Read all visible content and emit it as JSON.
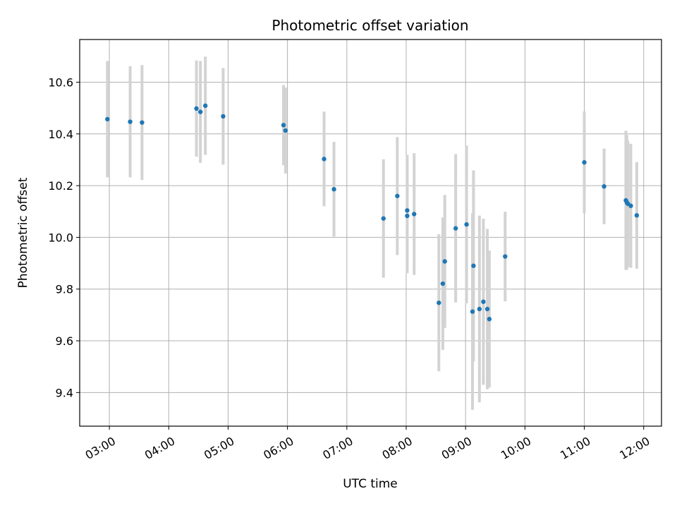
{
  "chart_data": {
    "type": "scatter",
    "title": "Photometric offset variation",
    "xlabel": "UTC time",
    "ylabel": "Photometric offset",
    "x_unit": "UTC time (HH:MM)",
    "xlim": [
      "02:30",
      "12:18"
    ],
    "ylim": [
      9.27,
      10.765
    ],
    "x_ticks": [
      "03:00",
      "04:00",
      "05:00",
      "06:00",
      "07:00",
      "08:00",
      "09:00",
      "10:00",
      "11:00",
      "12:00"
    ],
    "y_ticks": [
      9.4,
      9.6,
      9.8,
      10.0,
      10.2,
      10.4,
      10.6
    ],
    "y_tick_labels": [
      "9.4",
      "9.6",
      "9.8",
      "10.0",
      "10.2",
      "10.4",
      "10.6"
    ],
    "grid": true,
    "marker_color": "#1f77b4",
    "errorbar_color": "#d3d3d3",
    "points": [
      {
        "time": "02:58",
        "y": 10.457,
        "err": 0.225
      },
      {
        "time": "03:21",
        "y": 10.447,
        "err": 0.215
      },
      {
        "time": "03:33",
        "y": 10.444,
        "err": 0.222
      },
      {
        "time": "04:28",
        "y": 10.498,
        "err": 0.186
      },
      {
        "time": "04:32",
        "y": 10.485,
        "err": 0.197
      },
      {
        "time": "04:37",
        "y": 10.509,
        "err": 0.19
      },
      {
        "time": "04:55",
        "y": 10.468,
        "err": 0.187
      },
      {
        "time": "05:56",
        "y": 10.434,
        "err": 0.155
      },
      {
        "time": "05:58",
        "y": 10.413,
        "err": 0.166
      },
      {
        "time": "06:37",
        "y": 10.303,
        "err": 0.183
      },
      {
        "time": "06:47",
        "y": 10.186,
        "err": 0.183
      },
      {
        "time": "07:37",
        "y": 10.073,
        "err": 0.229
      },
      {
        "time": "07:51",
        "y": 10.16,
        "err": 0.228
      },
      {
        "time": "08:01",
        "y": 10.104,
        "err": 0.215
      },
      {
        "time": "08:01",
        "y": 10.083,
        "err": 0.222
      },
      {
        "time": "08:08",
        "y": 10.09,
        "err": 0.235
      },
      {
        "time": "08:33",
        "y": 9.747,
        "err": 0.265
      },
      {
        "time": "08:37",
        "y": 9.821,
        "err": 0.256
      },
      {
        "time": "08:39",
        "y": 9.907,
        "err": 0.257
      },
      {
        "time": "08:50",
        "y": 10.035,
        "err": 0.287
      },
      {
        "time": "09:01",
        "y": 10.05,
        "err": 0.305
      },
      {
        "time": "09:07",
        "y": 9.713,
        "err": 0.38
      },
      {
        "time": "09:08",
        "y": 9.89,
        "err": 0.369
      },
      {
        "time": "09:14",
        "y": 9.723,
        "err": 0.361
      },
      {
        "time": "09:18",
        "y": 9.751,
        "err": 0.321
      },
      {
        "time": "09:22",
        "y": 9.723,
        "err": 0.31
      },
      {
        "time": "09:24",
        "y": 9.684,
        "err": 0.265
      },
      {
        "time": "09:40",
        "y": 9.926,
        "err": 0.173
      },
      {
        "time": "11:00",
        "y": 10.29,
        "err": 0.197
      },
      {
        "time": "11:20",
        "y": 10.197,
        "err": 0.146
      },
      {
        "time": "11:42",
        "y": 10.143,
        "err": 0.269
      },
      {
        "time": "11:43",
        "y": 10.135,
        "err": 0.26
      },
      {
        "time": "11:44",
        "y": 10.13,
        "err": 0.244
      },
      {
        "time": "11:47",
        "y": 10.122,
        "err": 0.24
      },
      {
        "time": "11:53",
        "y": 10.085,
        "err": 0.206
      }
    ]
  }
}
